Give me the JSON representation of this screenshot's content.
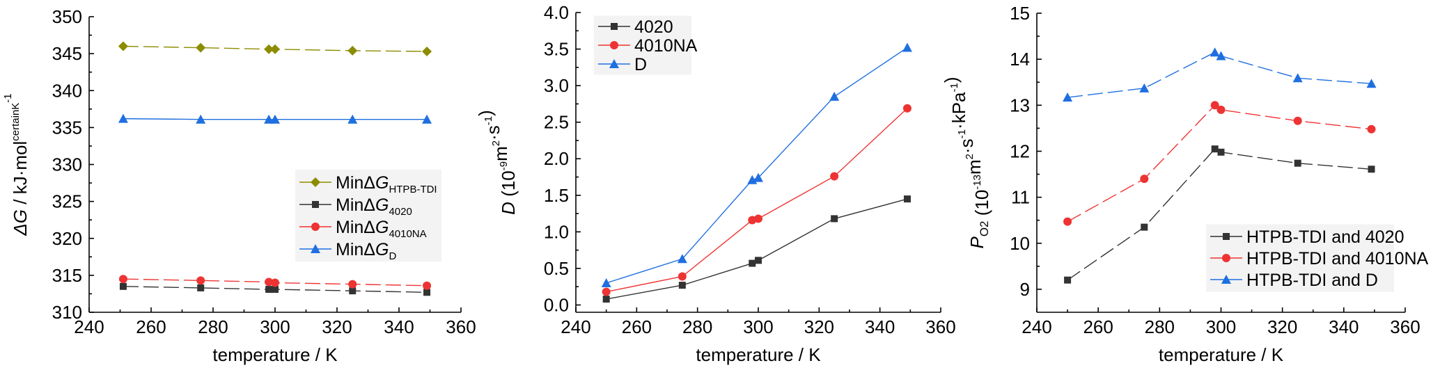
{
  "colors": {
    "olive": "#8c8c00",
    "gray": "#333333",
    "red": "#ee3333",
    "blue": "#1f6fe0"
  },
  "chart_data": [
    {
      "type": "line",
      "xlabel": "temperature / K",
      "ylabel": {
        "main": "ΔG",
        "sup": "certainK",
        "rest": " / kJ·mol",
        "sup2": "-1"
      },
      "xlim": [
        240,
        360
      ],
      "ylim": [
        310,
        350
      ],
      "xticks": [
        240,
        260,
        280,
        300,
        320,
        340,
        360
      ],
      "yticks": [
        310,
        315,
        320,
        325,
        330,
        335,
        340,
        345,
        350
      ],
      "legend_position": "bottom-right",
      "series": [
        {
          "name": "MinΔG",
          "sub": "HTPB-TDI",
          "marker": "diamond",
          "color": "#8c8c00",
          "dash": "dashed",
          "x": [
            251,
            276,
            298,
            300,
            325,
            349
          ],
          "y": [
            346.0,
            345.8,
            345.6,
            345.6,
            345.4,
            345.3
          ]
        },
        {
          "name": "MinΔG",
          "sub": "4020",
          "marker": "square",
          "color": "#333333",
          "dash": "dashed",
          "x": [
            251,
            276,
            298,
            300,
            325,
            349
          ],
          "y": [
            313.5,
            313.3,
            313.1,
            313.1,
            312.9,
            312.7
          ]
        },
        {
          "name": "MinΔG",
          "sub": "4010NA",
          "marker": "circle",
          "color": "#ee3333",
          "dash": "dashed",
          "x": [
            251,
            276,
            298,
            300,
            325,
            349
          ],
          "y": [
            314.5,
            314.3,
            314.1,
            314.0,
            313.8,
            313.6
          ]
        },
        {
          "name": "MinΔG",
          "sub": "D",
          "marker": "triangle",
          "color": "#1f6fe0",
          "dash": "solid",
          "x": [
            251,
            276,
            298,
            300,
            325,
            349
          ],
          "y": [
            336.2,
            336.1,
            336.1,
            336.1,
            336.1,
            336.1
          ]
        }
      ]
    },
    {
      "type": "line",
      "xlabel": "temperature / K",
      "ylabel": {
        "main": "D",
        "rest": " (10",
        "sup": "-9",
        "rest2": "m",
        "sup2": "2",
        "rest3": "·s",
        "sup3": "-1",
        "rest4": ")"
      },
      "xlim": [
        240,
        360
      ],
      "ylim": [
        -0.1,
        4.0
      ],
      "xticks": [
        240,
        260,
        280,
        300,
        320,
        340,
        360
      ],
      "yticks": [
        0.0,
        0.5,
        1.0,
        1.5,
        2.0,
        2.5,
        3.0,
        3.5,
        4.0
      ],
      "ytick_labels": [
        "0.0",
        "0.5",
        "1.0",
        "1.5",
        "2.0",
        "2.5",
        "3.0",
        "3.5",
        "4.0"
      ],
      "legend_position": "top-left",
      "series": [
        {
          "name": "4020",
          "marker": "square",
          "color": "#333333",
          "dash": "solid",
          "x": [
            250,
            275,
            298,
            300,
            325,
            349
          ],
          "y": [
            0.08,
            0.27,
            0.57,
            0.61,
            1.18,
            1.45
          ]
        },
        {
          "name": "4010NA",
          "marker": "circle",
          "color": "#ee3333",
          "dash": "solid",
          "x": [
            250,
            275,
            298,
            300,
            325,
            349
          ],
          "y": [
            0.18,
            0.39,
            1.16,
            1.18,
            1.76,
            2.69
          ]
        },
        {
          "name": "D",
          "marker": "triangle",
          "color": "#1f6fe0",
          "dash": "solid",
          "x": [
            250,
            275,
            298,
            300,
            325,
            349
          ],
          "y": [
            0.3,
            0.63,
            1.71,
            1.74,
            2.85,
            3.52
          ]
        }
      ]
    },
    {
      "type": "line",
      "xlabel": "temperature / K",
      "ylabel": {
        "main": "P",
        "sub": "O2",
        "rest": " (10",
        "sup": "-13",
        "rest2": "m",
        "sup2": "2",
        "rest3": "·s",
        "sup3": "-1",
        "rest4": "·kPa",
        "sup4": "-1",
        "rest5": ")"
      },
      "xlim": [
        240,
        360
      ],
      "ylim": [
        8.5,
        15
      ],
      "xticks": [
        240,
        260,
        280,
        300,
        320,
        340,
        360
      ],
      "yticks": [
        9,
        10,
        11,
        12,
        13,
        14,
        15
      ],
      "legend_position": "bottom-right",
      "series": [
        {
          "name": "HTPB-TDI and 4020",
          "marker": "square",
          "color": "#333333",
          "dash": "dashed",
          "x": [
            250,
            275,
            298,
            300,
            325,
            349
          ],
          "y": [
            9.2,
            10.35,
            12.05,
            11.98,
            11.74,
            11.61
          ]
        },
        {
          "name": "HTPB-TDI and 4010NA",
          "marker": "circle",
          "color": "#ee3333",
          "dash": "dashed",
          "x": [
            250,
            275,
            298,
            300,
            325,
            349
          ],
          "y": [
            10.47,
            11.4,
            13.0,
            12.9,
            12.66,
            12.48
          ]
        },
        {
          "name": "HTPB-TDI and D",
          "marker": "triangle",
          "color": "#1f6fe0",
          "dash": "dashed",
          "x": [
            250,
            275,
            298,
            300,
            325,
            349
          ],
          "y": [
            13.17,
            13.37,
            14.15,
            14.07,
            13.59,
            13.47
          ]
        }
      ]
    }
  ]
}
